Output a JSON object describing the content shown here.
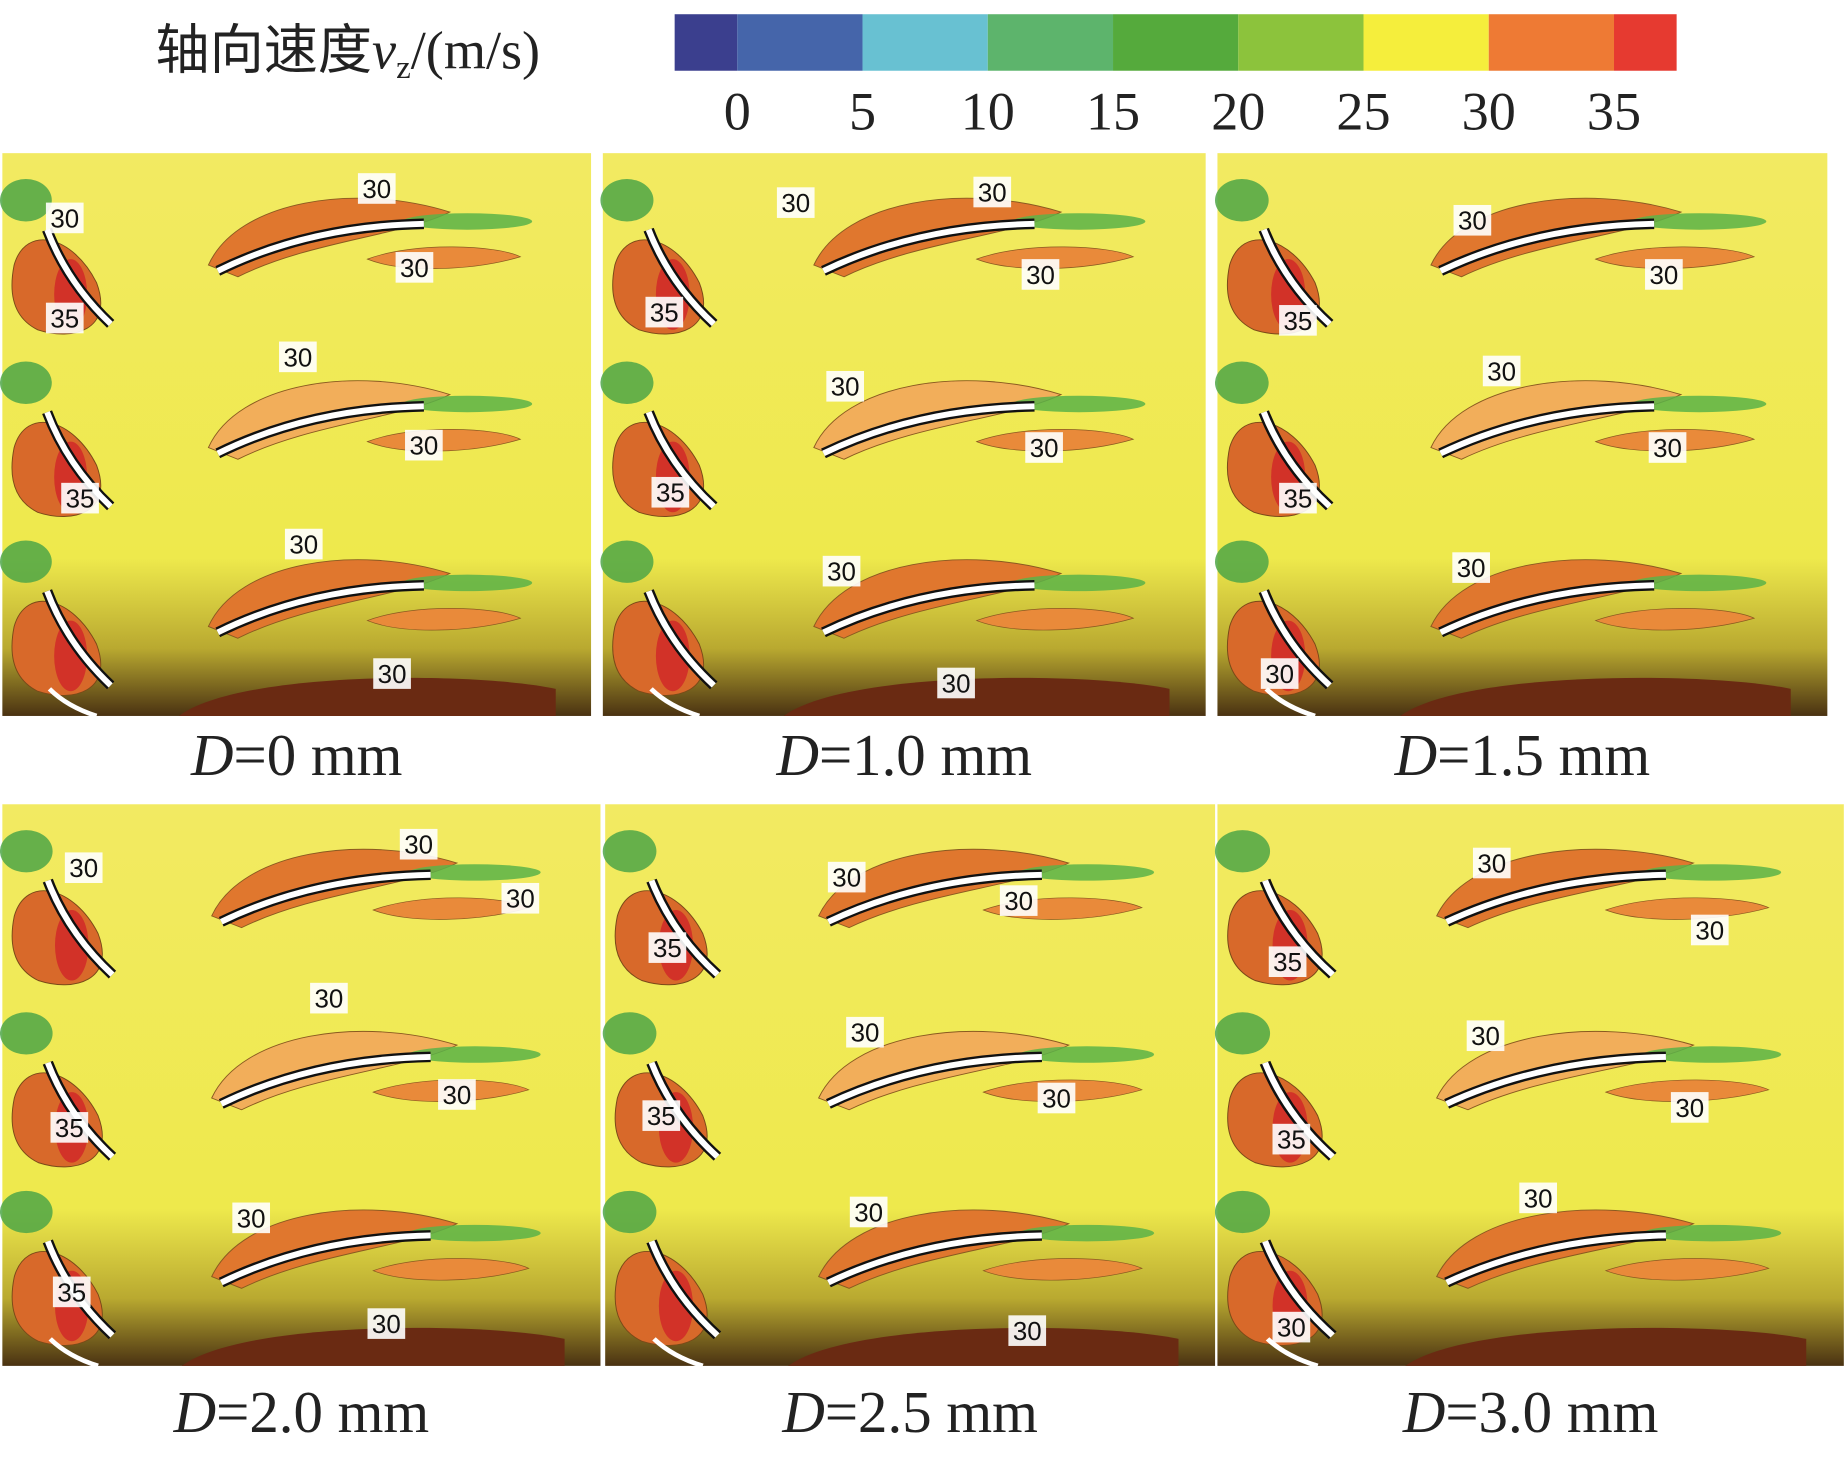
{
  "colorbar": {
    "title": "轴向速度",
    "symbol": "v",
    "subscript": "z",
    "unit": "/(m/s)",
    "ticks": [
      0,
      5,
      10,
      15,
      20,
      25,
      30,
      35
    ],
    "lim": [
      -2.5,
      37.5
    ],
    "colors": [
      "#3b3f8e",
      "#4565aa",
      "#68c1d2",
      "#5db46c",
      "#55aa3c",
      "#8cc33c",
      "#f5ee3c",
      "#ee7a34",
      "#e63a30"
    ]
  },
  "panels": [
    {
      "caption_symbol": "D",
      "caption": "=0 mm",
      "labels": [
        "30",
        "30",
        "30",
        "35",
        "30",
        "30",
        "35",
        "30",
        "30"
      ]
    },
    {
      "caption_symbol": "D",
      "caption": "=1.0 mm",
      "labels": [
        "30",
        "30",
        "30",
        "35",
        "30",
        "30",
        "35",
        "30",
        "30"
      ]
    },
    {
      "caption_symbol": "D",
      "caption": "=1.5 mm",
      "labels": [
        "30",
        "30",
        "35",
        "30",
        "30",
        "35",
        "30",
        "30"
      ]
    },
    {
      "caption_symbol": "D",
      "caption": "=2.0 mm",
      "labels": [
        "30",
        "30",
        "30",
        "30",
        "30",
        "35",
        "30",
        "35",
        "30"
      ]
    },
    {
      "caption_symbol": "D",
      "caption": "=2.5 mm",
      "labels": [
        "30",
        "30",
        "35",
        "30",
        "30",
        "35",
        "30",
        "30"
      ]
    },
    {
      "caption_symbol": "D",
      "caption": "=3.0 mm",
      "labels": [
        "30",
        "30",
        "35",
        "30",
        "30",
        "35",
        "30",
        "30"
      ]
    }
  ]
}
